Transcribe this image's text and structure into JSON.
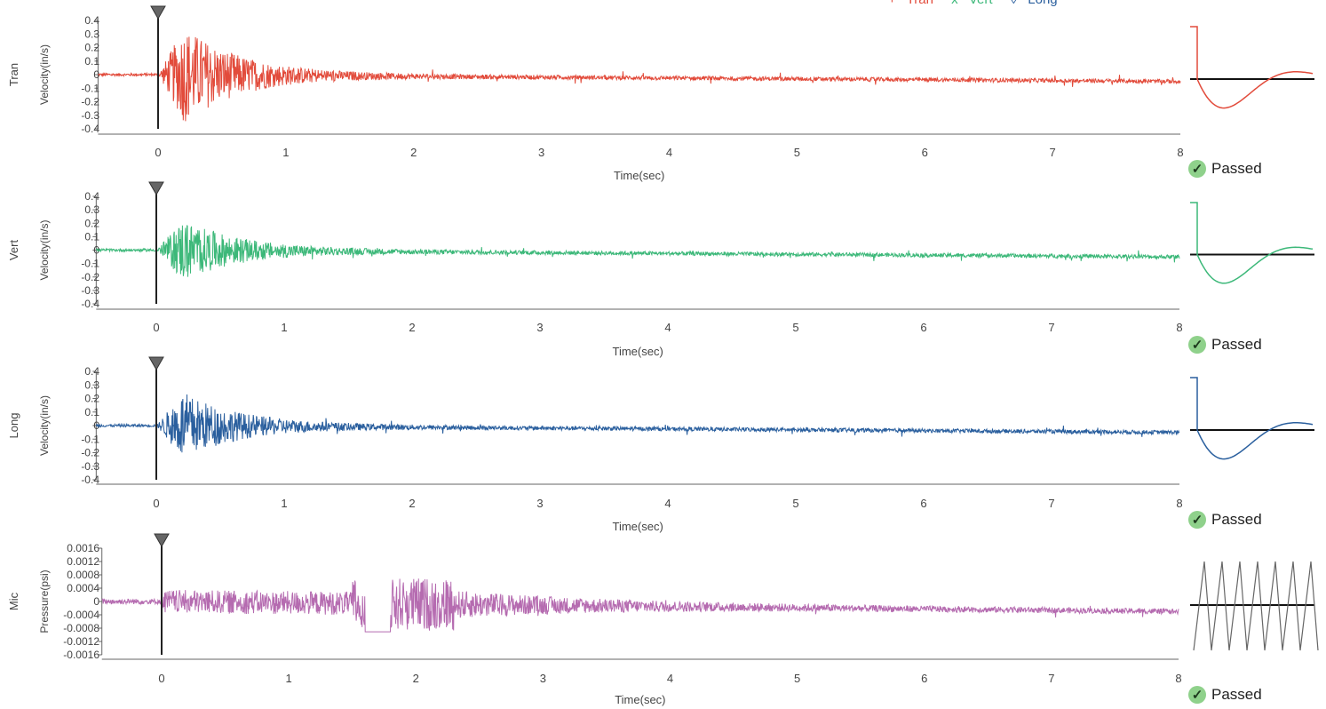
{
  "legend": [
    {
      "marker": "+",
      "label": "Tran",
      "color": "#e24b3b"
    },
    {
      "marker": "x",
      "label": "Vert",
      "color": "#3cb879"
    },
    {
      "marker": "◊",
      "label": "Long",
      "color": "#2a5f9e"
    }
  ],
  "chart_data": [
    {
      "type": "line",
      "channel": "Tran",
      "ylabel": "Velocity(in/s)",
      "xlabel": "Time(sec)",
      "xlim": [
        -0.47,
        8
      ],
      "ylim": [
        -0.4,
        0.4
      ],
      "yticks": [
        "0.4",
        "0.3",
        "0.2",
        "0.1",
        "0",
        "-0.1",
        "-0.2",
        "-0.3",
        "-0.4"
      ],
      "xticks": [
        "0",
        "1",
        "2",
        "3",
        "4",
        "5",
        "6",
        "7",
        "8"
      ],
      "trigger_time": 0,
      "color": "#e24b3b",
      "peak_positive": 0.35,
      "peak_negative": -0.33,
      "status": "Passed"
    },
    {
      "type": "line",
      "channel": "Vert",
      "ylabel": "Velocity(in/s)",
      "xlabel": "Time(sec)",
      "xlim": [
        -0.47,
        8
      ],
      "ylim": [
        -0.4,
        0.4
      ],
      "yticks": [
        "0.4",
        "0.3",
        "0.2",
        "0.1",
        "0",
        "-0.1",
        "-0.2",
        "-0.3",
        "-0.4"
      ],
      "xticks": [
        "0",
        "1",
        "2",
        "3",
        "4",
        "5",
        "6",
        "7",
        "8"
      ],
      "trigger_time": 0,
      "color": "#3cb879",
      "peak_positive": 0.22,
      "peak_negative": -0.2,
      "status": "Passed"
    },
    {
      "type": "line",
      "channel": "Long",
      "ylabel": "Velocity(in/s)",
      "xlabel": "Time(sec)",
      "xlim": [
        -0.47,
        8
      ],
      "ylim": [
        -0.4,
        0.4
      ],
      "yticks": [
        "0.4",
        "0.3",
        "0.2",
        "0.1",
        "0",
        "-0.1",
        "-0.2",
        "-0.3",
        "-0.4"
      ],
      "xticks": [
        "0",
        "1",
        "2",
        "3",
        "4",
        "5",
        "6",
        "7",
        "8"
      ],
      "trigger_time": 0,
      "color": "#2a5f9e",
      "peak_positive": 0.24,
      "peak_negative": -0.22,
      "status": "Passed"
    },
    {
      "type": "line",
      "channel": "Mic",
      "ylabel": "Pressure(psi)",
      "xlabel": "Time(sec)",
      "xlim": [
        -0.47,
        8
      ],
      "ylim": [
        -0.0016,
        0.0016
      ],
      "yticks": [
        "0.0016",
        "0.0012",
        "0.0008",
        "0.0004",
        "0",
        "-0.0004",
        "-0.0008",
        "-0.0012",
        "-0.0016"
      ],
      "xticks": [
        "0",
        "1",
        "2",
        "3",
        "4",
        "5",
        "6",
        "7",
        "8"
      ],
      "trigger_time": 0,
      "color": "#b56bb0",
      "peak_positive": 0.0008,
      "peak_negative": -0.0013,
      "status": "Passed"
    }
  ]
}
